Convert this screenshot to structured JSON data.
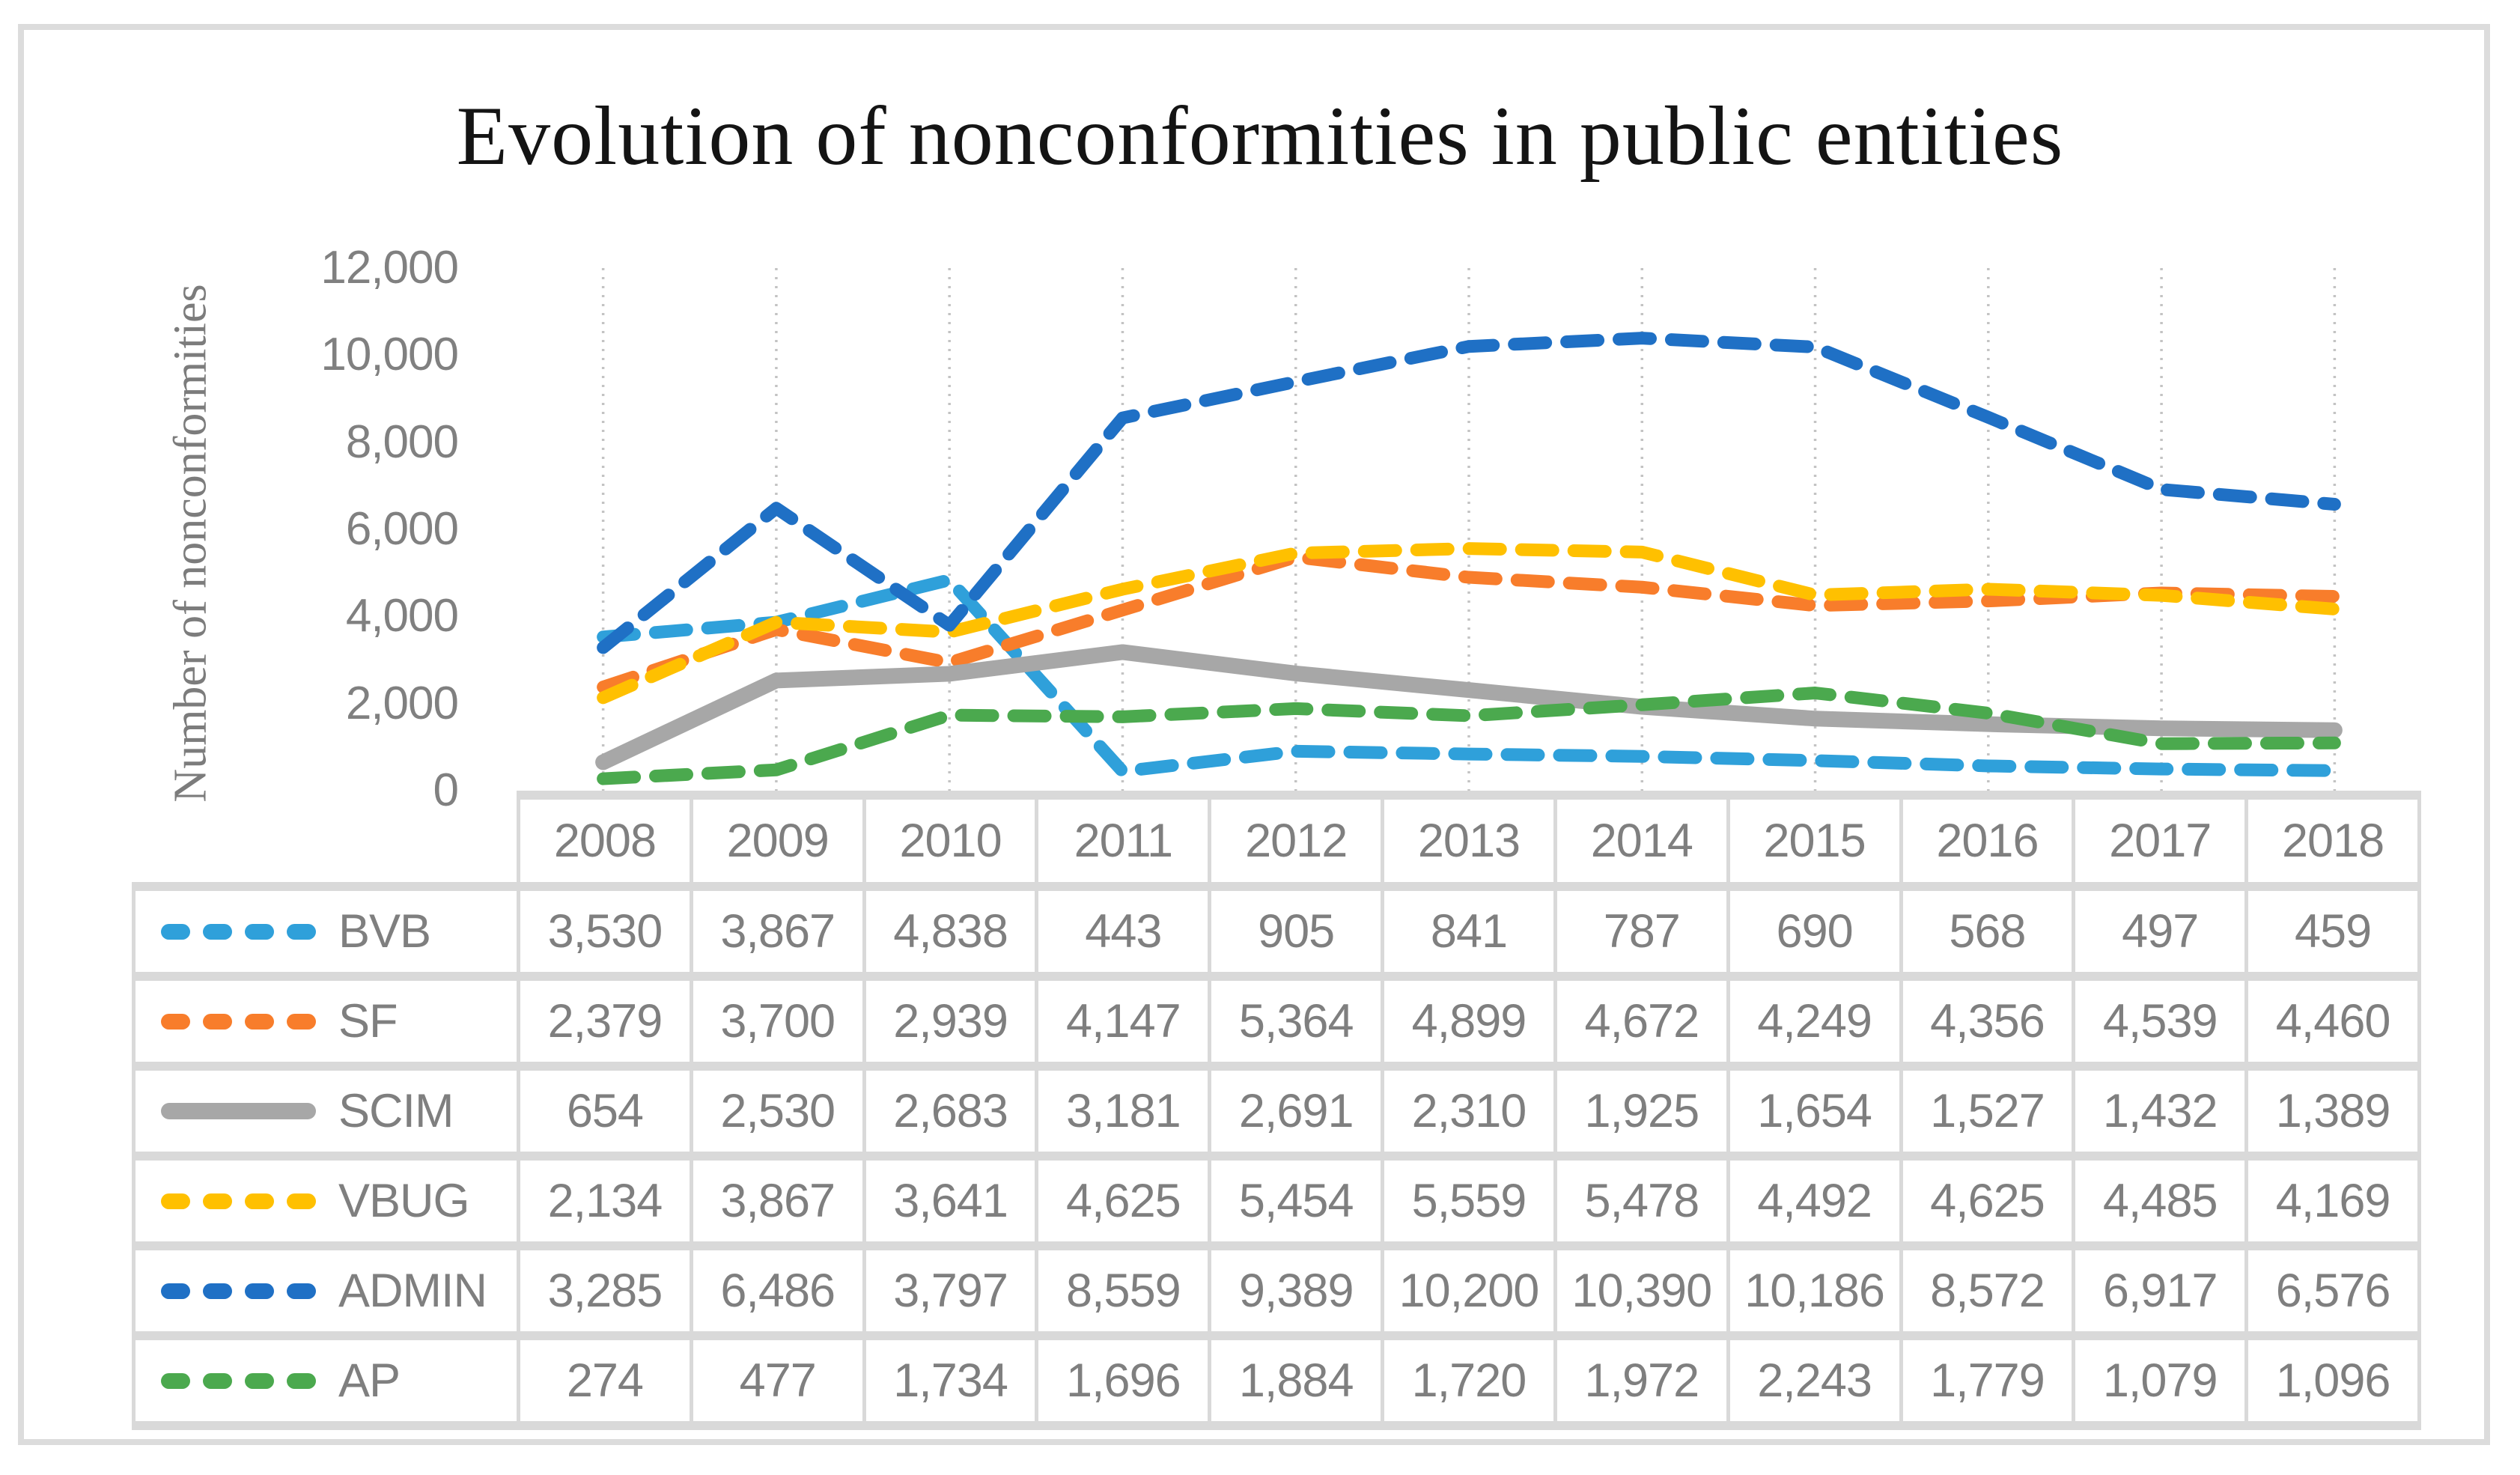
{
  "figure": {
    "border_color": "#dcdcdc",
    "background": "#ffffff"
  },
  "chart_data": {
    "type": "line",
    "title": "Evolution of nonconformities in public entities",
    "xlabel": "",
    "ylabel": "Number of nonconformities",
    "ylim": [
      0,
      12000
    ],
    "y_ticks": [
      "0",
      "2,000",
      "4,000",
      "6,000",
      "8,000",
      "10,000",
      "12,000"
    ],
    "y_tick_values": [
      0,
      2000,
      4000,
      6000,
      8000,
      10000,
      12000
    ],
    "categories": [
      "2008",
      "2009",
      "2010",
      "2011",
      "2012",
      "2013",
      "2014",
      "2015",
      "2016",
      "2017",
      "2018"
    ],
    "grid": "vertical-dotted",
    "gridline_color": "#c3c3c3",
    "legend_position": "table-left",
    "axis_text_color": "#808080",
    "table_text_color": "#7f7f7f",
    "table_border_color": "#d9d9d9",
    "series": [
      {
        "name": "BVB",
        "color": "#2fa0da",
        "line_style": "dashed",
        "values": [
          3530,
          3867,
          4838,
          443,
          905,
          841,
          787,
          690,
          568,
          497,
          459
        ]
      },
      {
        "name": "SF",
        "color": "#f87d2b",
        "line_style": "dashed",
        "values": [
          2379,
          3700,
          2939,
          4147,
          5364,
          4899,
          4672,
          4249,
          4356,
          4539,
          4460
        ]
      },
      {
        "name": "SCIM",
        "color": "#a7a7a7",
        "line_style": "solid",
        "values": [
          654,
          2530,
          2683,
          3181,
          2691,
          2310,
          1925,
          1654,
          1527,
          1432,
          1389
        ]
      },
      {
        "name": "VBUG",
        "color": "#ffc000",
        "line_style": "dashed",
        "values": [
          2134,
          3867,
          3641,
          4625,
          5454,
          5559,
          5478,
          4492,
          4625,
          4485,
          4169
        ]
      },
      {
        "name": "ADMIN",
        "color": "#1f70c5",
        "line_style": "dashed",
        "values": [
          3285,
          6486,
          3797,
          8559,
          9389,
          10200,
          10390,
          10186,
          8572,
          6917,
          6576
        ]
      },
      {
        "name": "AP",
        "color": "#4ba94e",
        "line_style": "dashed",
        "values": [
          274,
          477,
          1734,
          1696,
          1884,
          1720,
          1972,
          2243,
          1779,
          1079,
          1096
        ]
      }
    ]
  }
}
